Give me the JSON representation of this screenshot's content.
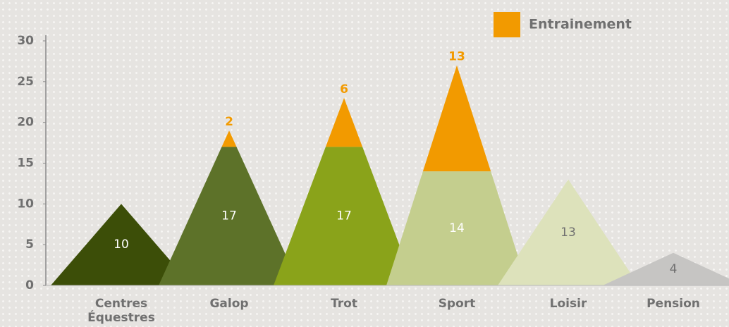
{
  "chart_data": {
    "type": "stacked-triangle",
    "categories": [
      "Centres Équestres",
      "Galop",
      "Trot",
      "Sport",
      "Loisir",
      "Pension"
    ],
    "series": [
      {
        "colors": [
          "#3c4e08",
          "#5d7229",
          "#8aa31a",
          "#c4ce8e",
          "#dde2bb",
          "#c6c5c3"
        ],
        "values": [
          10,
          17,
          17,
          14,
          13,
          4
        ]
      },
      {
        "name": "Entrainement",
        "color": "#f29a00",
        "values": [
          null,
          2,
          6,
          13,
          null,
          null
        ]
      }
    ],
    "ylim": [
      0,
      30
    ],
    "yticks": [
      0,
      5,
      10,
      15,
      20,
      25,
      30
    ]
  }
}
